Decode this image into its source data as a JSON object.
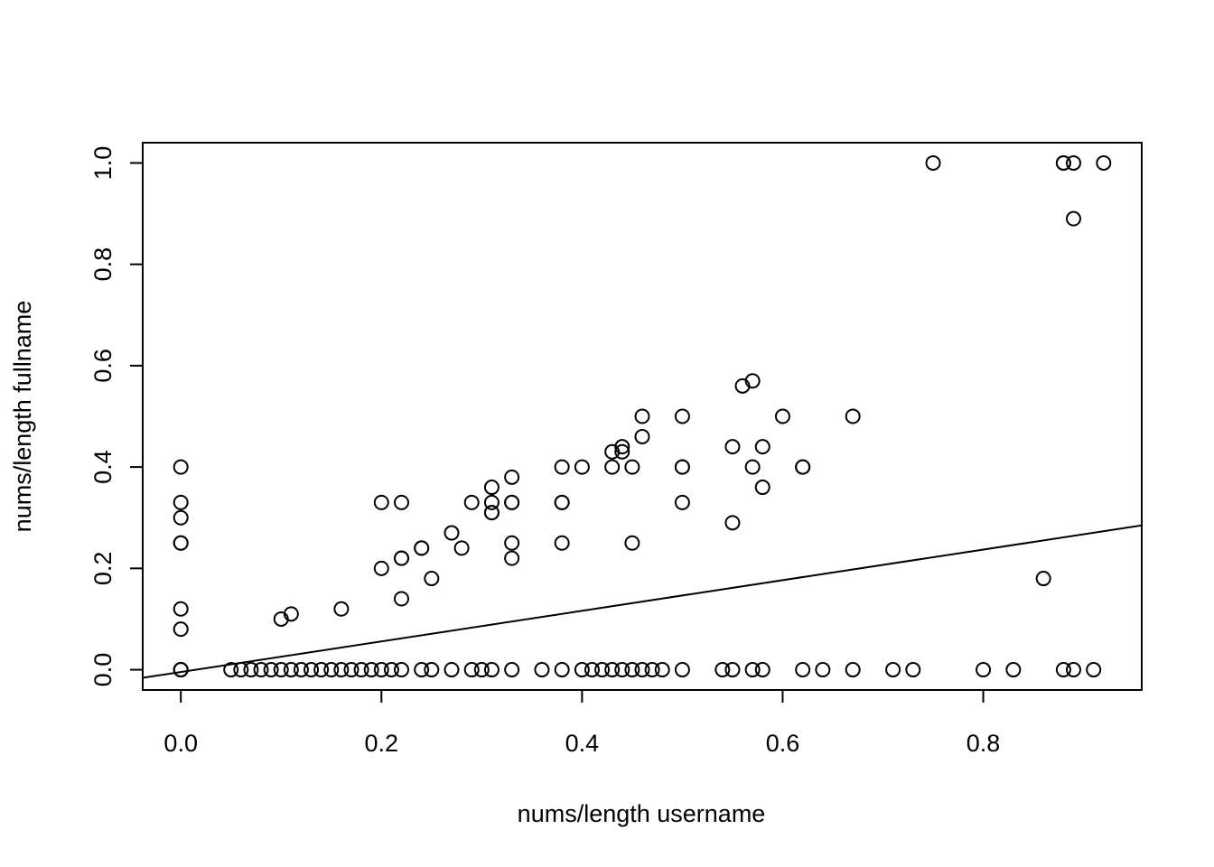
{
  "chart_data": {
    "type": "scatter",
    "title": "",
    "xlabel": "nums/length username",
    "ylabel": "nums/length fullname",
    "xlim": [
      -0.038,
      0.958
    ],
    "ylim": [
      -0.04,
      1.04
    ],
    "xticks": [
      0.0,
      0.2,
      0.4,
      0.6,
      0.8
    ],
    "xtick_labels": [
      "0.0",
      "0.2",
      "0.4",
      "0.6",
      "0.8"
    ],
    "yticks": [
      0.0,
      0.2,
      0.4,
      0.6,
      0.8,
      1.0
    ],
    "ytick_labels": [
      "0.0",
      "0.2",
      "0.4",
      "0.6",
      "0.8",
      "1.0"
    ],
    "grid": false,
    "legend": "none",
    "marker": "open-circle",
    "fit_line": {
      "intercept": -0.0045,
      "slope": 0.302
    },
    "points": {
      "x": [
        0.75,
        0.88,
        0.88,
        0.89,
        0.92,
        0.89,
        0.56,
        0.57,
        0.46,
        0.5,
        0.6,
        0.67,
        0.46,
        0.43,
        0.44,
        0.44,
        0.55,
        0.58,
        0.0,
        0.4,
        0.38,
        0.43,
        0.45,
        0.5,
        0.5,
        0.57,
        0.62,
        0.62,
        0.33,
        0.31,
        0.58,
        0.0,
        0.2,
        0.22,
        0.29,
        0.31,
        0.33,
        0.33,
        0.38,
        0.38,
        0.5,
        0.31,
        0.31,
        0.0,
        0.55,
        0.27,
        0.0,
        0.0,
        0.33,
        0.38,
        0.45,
        0.24,
        0.24,
        0.28,
        0.22,
        0.22,
        0.33,
        0.2,
        0.25,
        0.86,
        0.22,
        0.0,
        0.16,
        0.11,
        0.1,
        0.0,
        0.0,
        0.0,
        0.0,
        0.05,
        0.06,
        0.07,
        0.08,
        0.09,
        0.1,
        0.11,
        0.12,
        0.13,
        0.14,
        0.15,
        0.16,
        0.17,
        0.18,
        0.19,
        0.2,
        0.21,
        0.22,
        0.24,
        0.25,
        0.27,
        0.29,
        0.3,
        0.31,
        0.33,
        0.36,
        0.38,
        0.4,
        0.41,
        0.42,
        0.43,
        0.44,
        0.45,
        0.46,
        0.47,
        0.48,
        0.5,
        0.54,
        0.55,
        0.57,
        0.58,
        0.62,
        0.64,
        0.67,
        0.71,
        0.73,
        0.8,
        0.83,
        0.88,
        0.89,
        0.91
      ],
      "y": [
        1.0,
        1.0,
        1.0,
        1.0,
        1.0,
        0.89,
        0.56,
        0.57,
        0.5,
        0.5,
        0.5,
        0.5,
        0.46,
        0.43,
        0.44,
        0.43,
        0.44,
        0.44,
        0.4,
        0.4,
        0.4,
        0.4,
        0.4,
        0.4,
        0.4,
        0.4,
        0.4,
        0.4,
        0.38,
        0.36,
        0.36,
        0.33,
        0.33,
        0.33,
        0.33,
        0.33,
        0.33,
        0.33,
        0.33,
        0.33,
        0.33,
        0.31,
        0.31,
        0.3,
        0.29,
        0.27,
        0.25,
        0.25,
        0.25,
        0.25,
        0.25,
        0.24,
        0.24,
        0.24,
        0.22,
        0.22,
        0.22,
        0.2,
        0.18,
        0.18,
        0.14,
        0.12,
        0.12,
        0.11,
        0.1,
        0.08,
        0.0,
        0.0,
        0.0,
        0.0,
        0.0,
        0.0,
        0.0,
        0.0,
        0.0,
        0.0,
        0.0,
        0.0,
        0.0,
        0.0,
        0.0,
        0.0,
        0.0,
        0.0,
        0.0,
        0.0,
        0.0,
        0.0,
        0.0,
        0.0,
        0.0,
        0.0,
        0.0,
        0.0,
        0.0,
        0.0,
        0.0,
        0.0,
        0.0,
        0.0,
        0.0,
        0.0,
        0.0,
        0.0,
        0.0,
        0.0,
        0.0,
        0.0,
        0.0,
        0.0,
        0.0,
        0.0,
        0.0,
        0.0,
        0.0,
        0.0,
        0.0,
        0.0,
        0.0,
        0.0
      ]
    }
  }
}
